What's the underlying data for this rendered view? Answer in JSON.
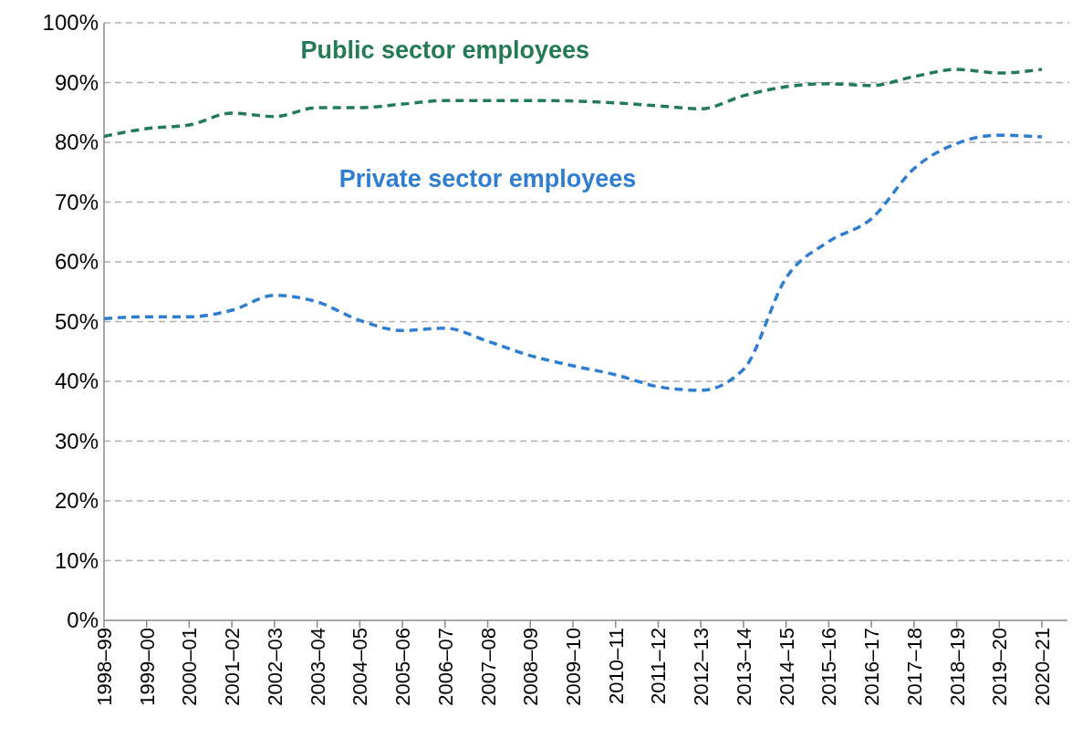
{
  "chart_data": {
    "type": "line",
    "categories": [
      "1998–99",
      "1999–00",
      "2000–01",
      "2001–02",
      "2002–03",
      "2003–04",
      "2004–05",
      "2005–06",
      "2006–07",
      "2007–08",
      "2008–09",
      "2009–10",
      "2010–11",
      "2011–12",
      "2012–13",
      "2013–14",
      "2014–15",
      "2015–16",
      "2016–17",
      "2017–18",
      "2018–19",
      "2019–20",
      "2020–21"
    ],
    "series": [
      {
        "name": "Public sector employees",
        "color": "#237a57",
        "values": [
          81,
          82.3,
          82.9,
          84.9,
          84.3,
          85.8,
          85.8,
          86.4,
          87,
          87,
          87,
          86.9,
          86.6,
          86.1,
          85.6,
          87.8,
          89.3,
          89.8,
          89.5,
          91,
          92.2,
          91.6,
          92.2
        ]
      },
      {
        "name": "Private sector employees",
        "color": "#2e7dd1",
        "values": [
          50.5,
          50.8,
          50.8,
          51.9,
          54.4,
          53.3,
          50.2,
          48.5,
          48.9,
          46.7,
          44.3,
          42.6,
          41.1,
          39.1,
          38.5,
          42,
          57.3,
          63.4,
          67.2,
          75.6,
          79.8,
          81.2,
          80.9
        ]
      }
    ],
    "ylim": [
      0,
      100
    ],
    "yticks": [
      {
        "value": 0,
        "label": "0%"
      },
      {
        "value": 10,
        "label": "10%"
      },
      {
        "value": 20,
        "label": "20%"
      },
      {
        "value": 30,
        "label": "30%"
      },
      {
        "value": 40,
        "label": "40%"
      },
      {
        "value": 50,
        "label": "50%"
      },
      {
        "value": 60,
        "label": "60%"
      },
      {
        "value": 70,
        "label": "70%"
      },
      {
        "value": 80,
        "label": "80%"
      },
      {
        "value": 90,
        "label": "90%"
      },
      {
        "value": 100,
        "label": "100%"
      }
    ],
    "grid": "y",
    "line_style": "dashed",
    "marker": "none"
  }
}
